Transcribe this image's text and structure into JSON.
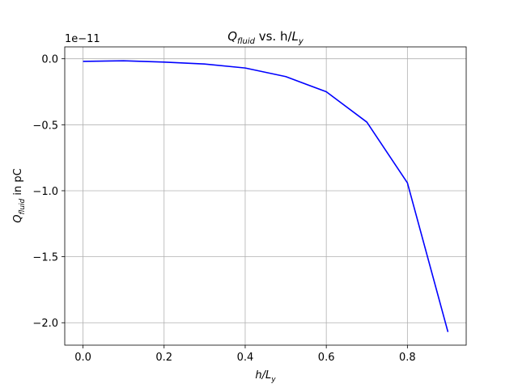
{
  "chart_data": {
    "type": "line",
    "title": {
      "main": "Q",
      "sub": "fluid",
      "rest": " vs. h/",
      "var": "L",
      "var_sub": "y"
    },
    "xlabel": {
      "main": "h/L",
      "sub": "y"
    },
    "ylabel": {
      "main": "Q",
      "sub": "fluid",
      "rest": " in pC"
    },
    "y_offset_label": "1e−11",
    "xlim": [
      -0.045,
      0.945
    ],
    "ylim": [
      -2.17,
      0.09
    ],
    "x_ticks": [
      0.0,
      0.2,
      0.4,
      0.6,
      0.8
    ],
    "x_tick_labels": [
      "0.0",
      "0.2",
      "0.4",
      "0.6",
      "0.8"
    ],
    "y_ticks": [
      0.0,
      -0.5,
      -1.0,
      -1.5,
      -2.0
    ],
    "y_tick_labels": [
      "0.0",
      "−0.5",
      "−1.0",
      "−1.5",
      "−2.0"
    ],
    "grid": true,
    "series": [
      {
        "color": "#0000ff",
        "x": [
          0.0,
          0.1,
          0.2,
          0.3,
          0.4,
          0.5,
          0.6,
          0.7,
          0.8,
          0.9
        ],
        "y": [
          -0.02,
          -0.015,
          -0.025,
          -0.04,
          -0.07,
          -0.135,
          -0.25,
          -0.48,
          -0.94,
          -2.07
        ]
      }
    ]
  }
}
